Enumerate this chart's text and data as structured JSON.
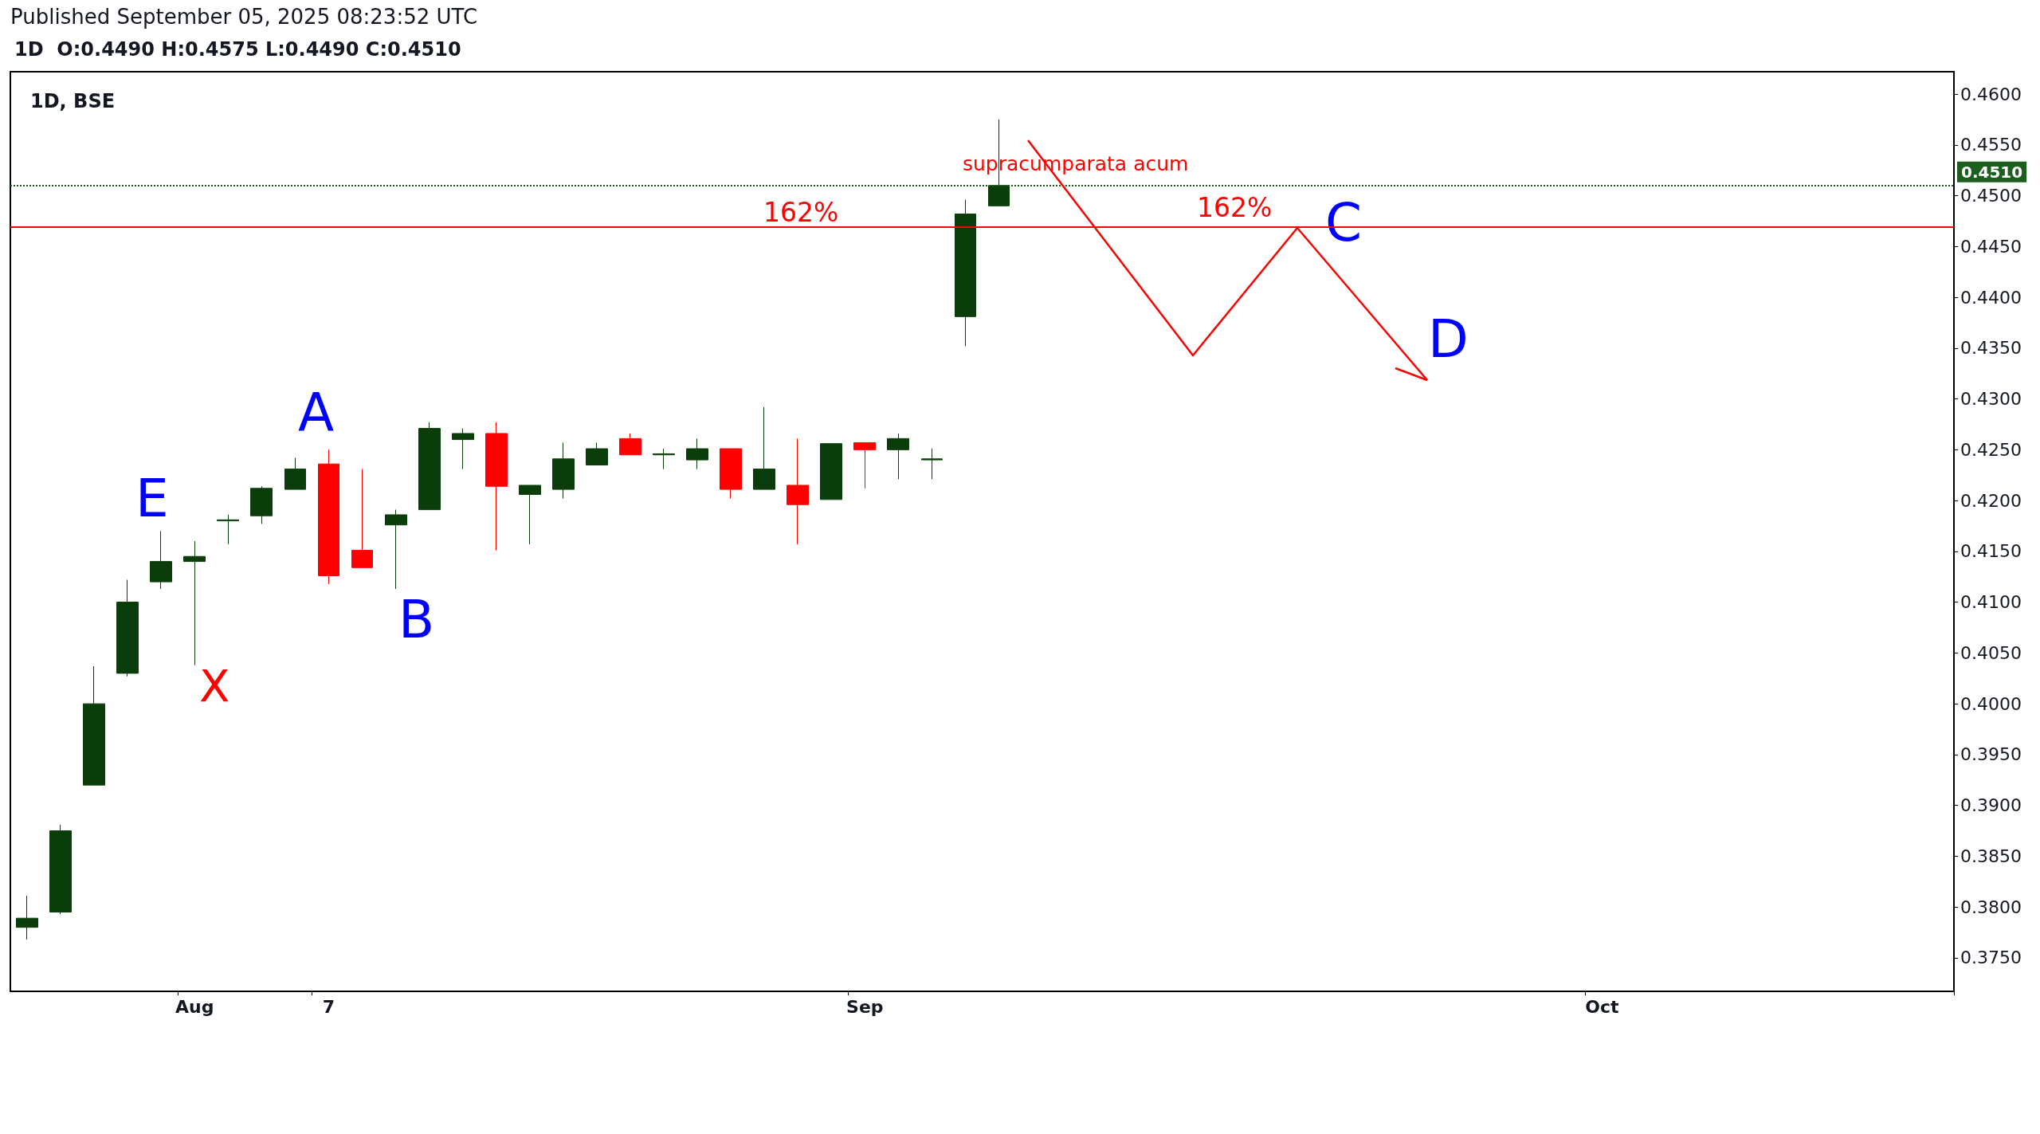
{
  "chart_data": {
    "type": "candlestick",
    "title": "1D, BSE",
    "subtitle": "1D  O:0.4490 H:0.4575 L:0.4490 C:0.4510",
    "annotations": [
      "Published September 05, 2025 08:23:52 UTC",
      "supracumparata acum",
      "162%",
      "E",
      "X",
      "A",
      "B",
      "C",
      "D",
      "162%"
    ],
    "categories": [
      null,
      null,
      null,
      null,
      null,
      "Aug",
      null,
      null,
      null,
      "7",
      null,
      null,
      null,
      null,
      null,
      null,
      null,
      null,
      null,
      null,
      null,
      null,
      null,
      null,
      null,
      "Sep",
      null,
      null,
      null,
      null,
      null,
      null,
      null,
      null,
      null,
      null,
      null,
      null,
      null,
      null,
      null,
      null,
      null,
      null,
      null,
      null,
      null,
      "Oct",
      null,
      null,
      null,
      null,
      null,
      null,
      null,
      null,
      null,
      null
    ],
    "ohlc": [
      [
        0.378,
        0.3811,
        0.3768,
        0.3789
      ],
      [
        0.3795,
        0.3881,
        0.3793,
        0.3875
      ],
      [
        0.392,
        0.4037,
        0.392,
        0.4
      ],
      [
        0.403,
        0.4122,
        0.4027,
        0.41
      ],
      [
        0.412,
        0.417,
        0.4113,
        0.414
      ],
      [
        0.414,
        0.416,
        0.4038,
        0.4145
      ],
      [
        0.418,
        0.4186,
        0.4157,
        0.4181
      ],
      [
        0.4185,
        0.4214,
        0.4177,
        0.4212
      ],
      [
        0.4211,
        0.4242,
        0.4211,
        0.4231
      ],
      [
        0.4236,
        0.425,
        0.4118,
        0.4126
      ],
      [
        0.4151,
        0.4231,
        0.4134,
        0.4134
      ],
      [
        0.4176,
        0.4191,
        0.4113,
        0.4186
      ],
      [
        0.4191,
        0.4277,
        0.4191,
        0.4271
      ],
      [
        0.426,
        0.4271,
        0.4231,
        0.4266
      ],
      [
        0.4266,
        0.4277,
        0.4151,
        0.4214
      ],
      [
        0.4206,
        0.4215,
        0.4157,
        0.4215
      ],
      [
        0.4211,
        0.4257,
        0.4202,
        0.4241
      ],
      [
        0.4235,
        0.4257,
        0.4235,
        0.4251
      ],
      [
        0.4261,
        0.4266,
        0.4245,
        0.4245
      ],
      [
        0.4245,
        0.4251,
        0.4231,
        0.4246
      ],
      [
        0.424,
        0.4261,
        0.4231,
        0.4251
      ],
      [
        0.4251,
        0.4251,
        0.4202,
        0.4211
      ],
      [
        0.4211,
        0.4292,
        0.4211,
        0.4231
      ],
      [
        0.4215,
        0.4261,
        0.4157,
        0.4196
      ],
      [
        0.4201,
        0.4256,
        0.4201,
        0.4256
      ],
      [
        0.4257,
        0.4257,
        0.4212,
        0.425
      ],
      [
        0.425,
        0.4266,
        0.4221,
        0.4261
      ],
      [
        0.424,
        0.4251,
        0.4221,
        0.4241
      ],
      [
        0.4381,
        0.4496,
        0.4352,
        0.4482
      ],
      [
        0.449,
        0.4575,
        0.449,
        0.451
      ],
      null,
      null,
      null,
      null,
      null,
      null,
      null,
      null,
      null,
      null,
      null,
      null,
      null,
      null,
      null,
      null,
      null,
      null,
      null,
      null,
      null,
      null,
      null,
      null,
      null,
      null,
      null,
      null
    ],
    "colors": [
      "#0b3d0b",
      "#0b3d0b",
      "#0b3d0b",
      "#0b3d0b",
      "#0b3d0b",
      "#0b3d0b",
      "#0b3d0b",
      "#0b3d0b",
      "#0b3d0b",
      "#ff0000",
      "#ff0000",
      "#0b3d0b",
      "#0b3d0b",
      "#0b3d0b",
      "#ff0000",
      "#0b3d0b",
      "#0b3d0b",
      "#0b3d0b",
      "#ff0000",
      "#0b3d0b",
      "#0b3d0b",
      "#ff0000",
      "#0b3d0b",
      "#ff0000",
      "#0b3d0b",
      "#ff0000",
      "#0b3d0b",
      "#0b3d0b",
      "#0b3d0b",
      "#0b3d0b",
      null,
      null,
      null,
      null,
      null,
      null,
      null,
      null,
      null,
      null,
      null,
      null,
      null,
      null,
      null,
      null,
      null,
      null,
      null,
      null,
      null,
      null,
      null,
      null,
      null,
      null,
      null,
      null
    ],
    "ylim": [
      0.3717,
      0.4622
    ],
    "yticks": [
      {
        "value": 0.375,
        "label": "0.3750"
      },
      {
        "value": 0.38,
        "label": "0.3800"
      },
      {
        "value": 0.385,
        "label": "0.3850"
      },
      {
        "value": 0.39,
        "label": "0.3900"
      },
      {
        "value": 0.395,
        "label": "0.3950"
      },
      {
        "value": 0.4,
        "label": "0.4000"
      },
      {
        "value": 0.405,
        "label": "0.4050"
      },
      {
        "value": 0.41,
        "label": "0.4100"
      },
      {
        "value": 0.415,
        "label": "0.4150"
      },
      {
        "value": 0.42,
        "label": "0.4200"
      },
      {
        "value": 0.425,
        "label": "0.4250"
      },
      {
        "value": 0.43,
        "label": "0.4300"
      },
      {
        "value": 0.435,
        "label": "0.4350"
      },
      {
        "value": 0.44,
        "label": "0.4400"
      },
      {
        "value": 0.445,
        "label": "0.4450"
      },
      {
        "value": 0.45,
        "label": "0.4500"
      },
      {
        "value": 0.455,
        "label": "0.4550"
      },
      {
        "value": 0.46,
        "label": "0.4600"
      }
    ],
    "ref_lines": [
      {
        "axis": "y",
        "value": 0.451,
        "label": "0.4510",
        "color": "#1b5e20",
        "line_style": "dotted"
      },
      {
        "axis": "y",
        "value": 0.4469,
        "color": "#ff0000",
        "line_style": "solid"
      }
    ]
  }
}
